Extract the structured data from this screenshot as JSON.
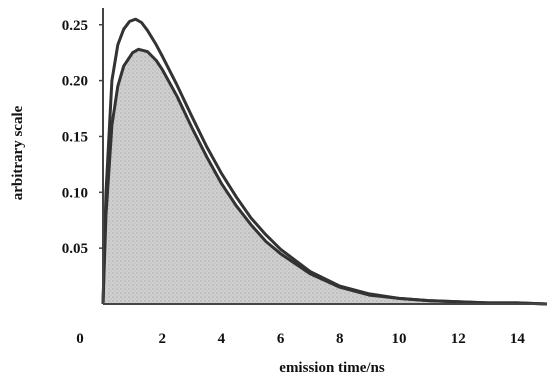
{
  "chart_data": {
    "type": "line",
    "xlabel": "emission time/ns",
    "ylabel": "arbitrary scale",
    "xlim": [
      0,
      15
    ],
    "ylim": [
      0,
      0.265
    ],
    "x_ticks": [
      "0",
      "2",
      "4",
      "6",
      "8",
      "10",
      "12",
      "14"
    ],
    "x_tick_values": [
      0,
      2,
      4,
      6,
      8,
      10,
      12,
      14
    ],
    "y_ticks": [
      "0.05",
      "0.10",
      "0.15",
      "0.20",
      "0.25"
    ],
    "y_tick_values": [
      0.05,
      0.1,
      0.15,
      0.2,
      0.25
    ],
    "grid": false,
    "legend": "none",
    "series": [
      {
        "fill": "#c9c9c9",
        "stroke": "#333333",
        "x": [
          0,
          0.1,
          0.3,
          0.5,
          0.7,
          1.0,
          1.2,
          1.5,
          1.8,
          2.0,
          2.5,
          3.0,
          3.5,
          4.0,
          4.5,
          5.0,
          5.5,
          6.0,
          7.0,
          8.0,
          9.0,
          10.0,
          11.0,
          12.0,
          13.0,
          14.0,
          15.0
        ],
        "values": [
          0.0,
          0.08,
          0.16,
          0.195,
          0.213,
          0.225,
          0.228,
          0.226,
          0.218,
          0.21,
          0.186,
          0.158,
          0.132,
          0.108,
          0.088,
          0.071,
          0.056,
          0.045,
          0.027,
          0.015,
          0.008,
          0.005,
          0.003,
          0.002,
          0.001,
          0.001,
          0.0
        ]
      },
      {
        "fill": "none",
        "stroke": "#333333",
        "x": [
          0,
          0.1,
          0.3,
          0.5,
          0.7,
          0.9,
          1.1,
          1.3,
          1.5,
          1.8,
          2.0,
          2.5,
          3.0,
          3.5,
          4.0,
          4.5,
          5.0,
          5.5,
          6.0,
          7.0,
          8.0,
          9.0,
          10.0,
          11.0,
          12.0,
          13.0,
          14.0,
          15.0
        ],
        "values": [
          0.0,
          0.1,
          0.2,
          0.232,
          0.246,
          0.253,
          0.255,
          0.252,
          0.245,
          0.232,
          0.222,
          0.196,
          0.168,
          0.141,
          0.117,
          0.096,
          0.077,
          0.062,
          0.049,
          0.029,
          0.016,
          0.009,
          0.005,
          0.003,
          0.002,
          0.001,
          0.001,
          0.0
        ]
      }
    ]
  }
}
